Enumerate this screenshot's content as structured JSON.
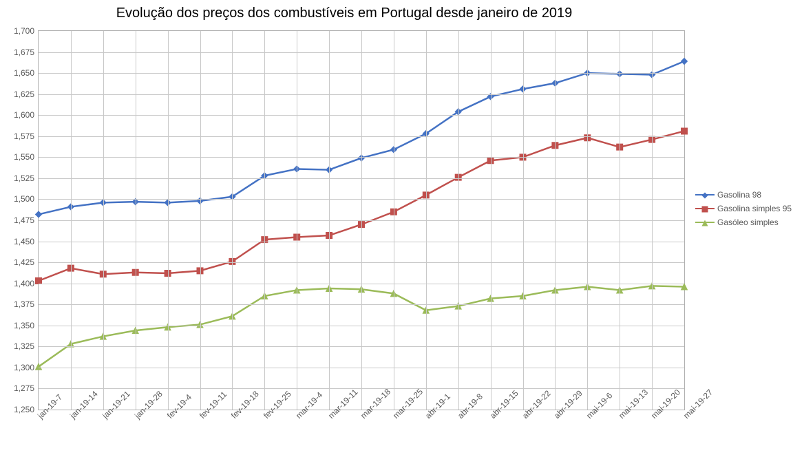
{
  "title": "Evolução dos preços dos combustíveis em Portugal desde janeiro de 2019",
  "title_fontsize": 20,
  "background_color": "#ffffff",
  "grid_color": "#c8c8c8",
  "axis_font_color": "#595959",
  "axis_fontsize": 12,
  "ylim": [
    1.25,
    1.7
  ],
  "ytick_step": 0.025,
  "ytick_labels": [
    "1,250",
    "1,275",
    "1,300",
    "1,325",
    "1,350",
    "1,375",
    "1,400",
    "1,425",
    "1,450",
    "1,475",
    "1,500",
    "1,525",
    "1,550",
    "1,575",
    "1,600",
    "1,625",
    "1,650",
    "1,675",
    "1,700"
  ],
  "x_categories": [
    "7-jan-19",
    "14-jan-19",
    "21-jan-19",
    "28-jan-19",
    "4-fev-19",
    "11-fev-19",
    "18-fev-19",
    "25-fev-19",
    "4-mar-19",
    "11-mar-19",
    "18-mar-19",
    "25-mar-19",
    "1-abr-19",
    "8-abr-19",
    "15-abr-19",
    "22-abr-19",
    "29-abr-19",
    "6-mai-19",
    "13-mai-19",
    "20-mai-19",
    "27-mai-19"
  ],
  "line_width": 2.5,
  "marker_size": 9,
  "series": [
    {
      "name": "Gasolina 98",
      "color": "#4472c4",
      "marker": "diamond",
      "values": [
        1.482,
        1.491,
        1.496,
        1.497,
        1.496,
        1.498,
        1.503,
        1.528,
        1.536,
        1.535,
        1.549,
        1.559,
        1.578,
        1.604,
        1.622,
        1.631,
        1.638,
        1.65,
        1.649,
        1.648,
        1.664
      ]
    },
    {
      "name": "Gasolina simples 95",
      "color": "#c0504d",
      "marker": "square",
      "values": [
        1.403,
        1.418,
        1.411,
        1.413,
        1.412,
        1.415,
        1.426,
        1.452,
        1.455,
        1.457,
        1.47,
        1.485,
        1.505,
        1.526,
        1.546,
        1.55,
        1.564,
        1.573,
        1.562,
        1.571,
        1.581
      ]
    },
    {
      "name": "Gasóleo simples",
      "color": "#9bbb59",
      "marker": "triangle",
      "values": [
        1.301,
        1.328,
        1.337,
        1.344,
        1.348,
        1.351,
        1.361,
        1.385,
        1.392,
        1.394,
        1.393,
        1.388,
        1.368,
        1.373,
        1.382,
        1.385,
        1.392,
        1.396,
        1.392,
        1.397,
        1.396
      ]
    }
  ],
  "legend_position": "right"
}
